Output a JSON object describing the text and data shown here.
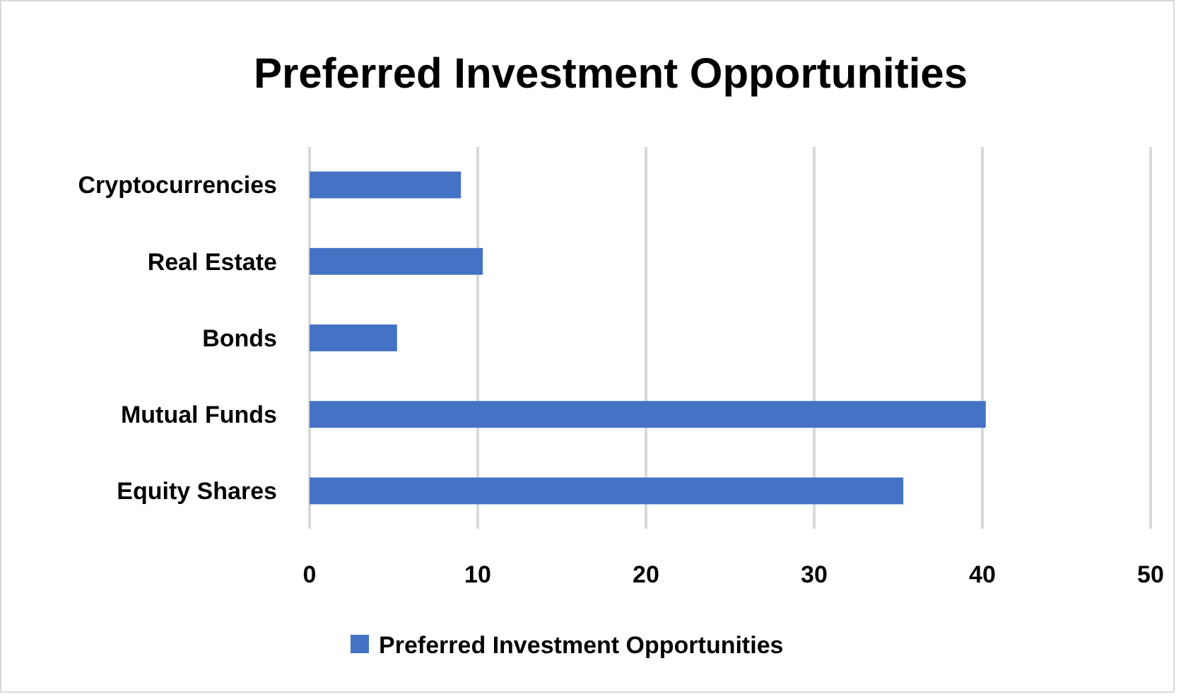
{
  "chart_data": {
    "type": "bar",
    "orientation": "horizontal",
    "title": "Preferred Investment Opportunities",
    "categories": [
      "Cryptocurrencies",
      "Real Estate",
      "Bonds",
      "Mutual Funds",
      "Equity Shares"
    ],
    "series": [
      {
        "name": "Preferred Investment Opportunities",
        "color": "#4472c4",
        "values": [
          9,
          10.3,
          5.2,
          40.2,
          35.3
        ]
      }
    ],
    "xlim": [
      0,
      50
    ],
    "xticks": [
      0,
      10,
      20,
      30,
      40,
      50
    ],
    "grid": "x",
    "legend": "bottom"
  }
}
